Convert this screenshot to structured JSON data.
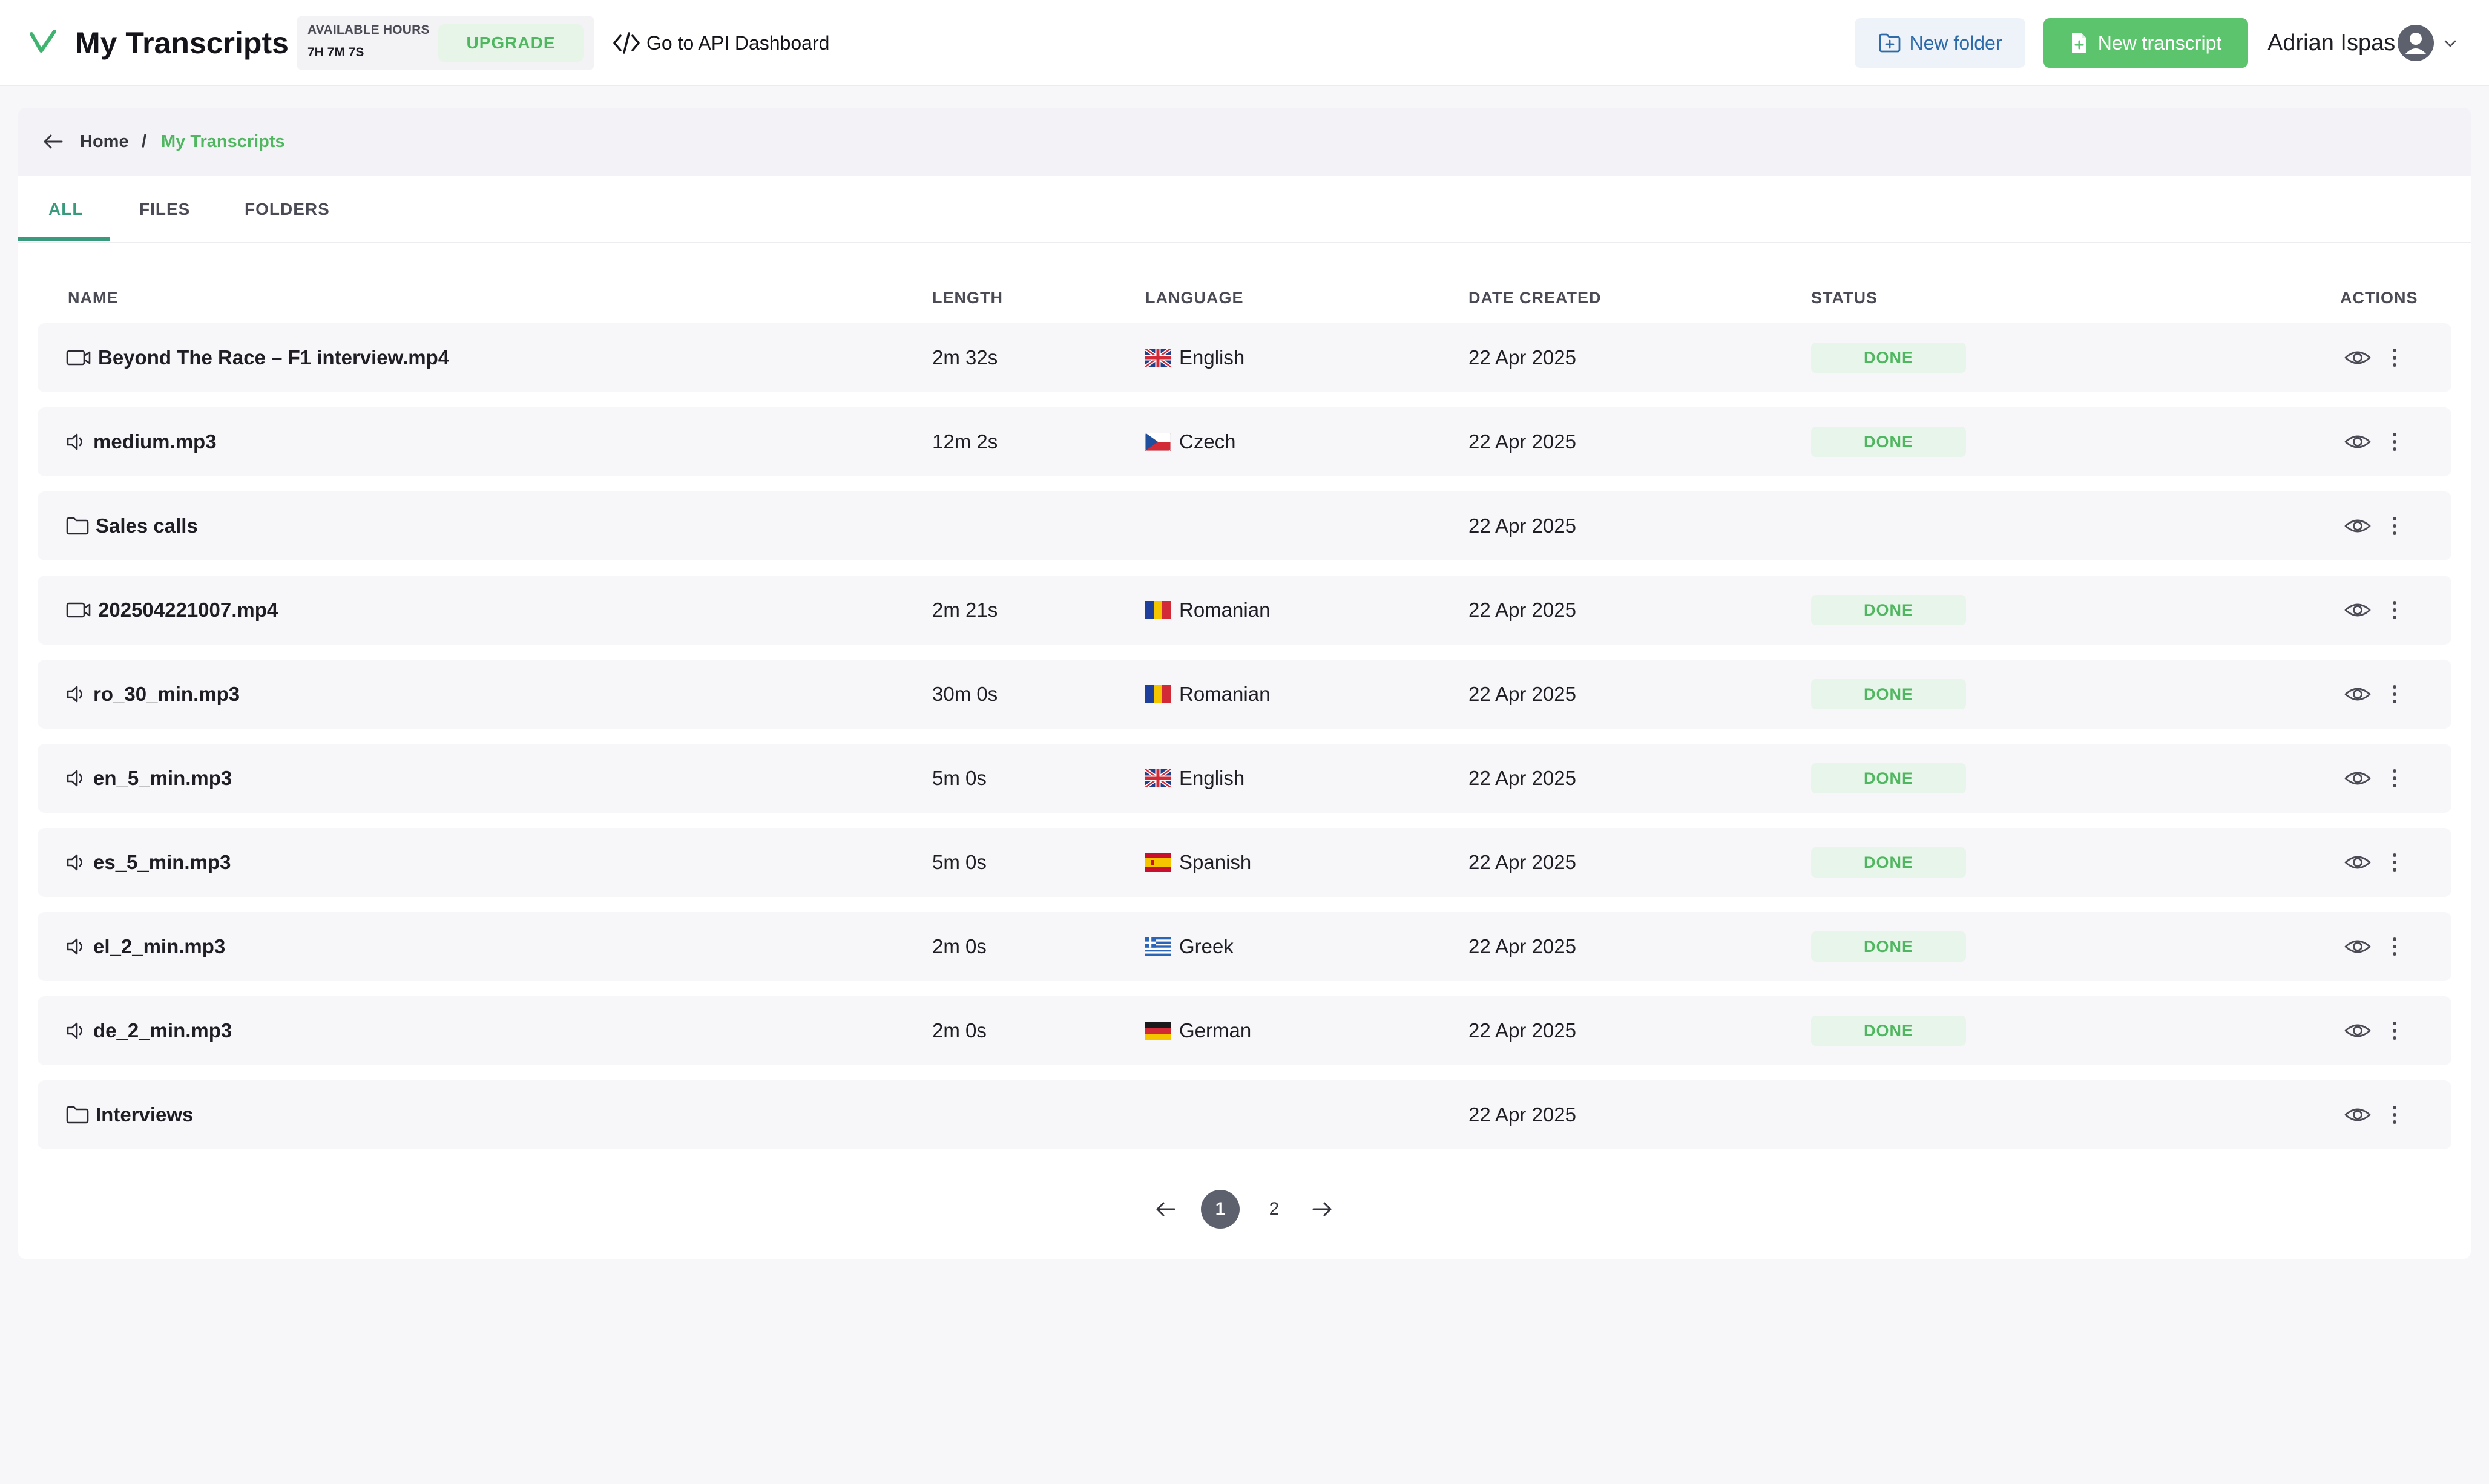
{
  "header": {
    "app_title": "My Transcripts",
    "available_hours_label": "AVAILABLE HOURS",
    "available_hours_value": "7H 7M 7S",
    "upgrade_label": "UPGRADE",
    "api_link_label": "Go to API Dashboard",
    "new_folder_label": "New folder",
    "new_transcript_label": "New transcript",
    "user_name": "Adrian Ispas"
  },
  "breadcrumb": {
    "home": "Home",
    "separator": "/",
    "current": "My Transcripts"
  },
  "tabs": [
    {
      "label": "ALL",
      "active": true
    },
    {
      "label": "FILES",
      "active": false
    },
    {
      "label": "FOLDERS",
      "active": false
    }
  ],
  "table": {
    "columns": {
      "name": "NAME",
      "length": "LENGTH",
      "language": "LANGUAGE",
      "date": "DATE CREATED",
      "status": "STATUS",
      "actions": "ACTIONS"
    },
    "rows": [
      {
        "type": "video",
        "name": "Beyond The Race – F1 interview.mp4",
        "length": "2m 32s",
        "language": "English",
        "flag": "uk",
        "date": "22 Apr 2025",
        "status": "DONE"
      },
      {
        "type": "audio",
        "name": "medium.mp3",
        "length": "12m 2s",
        "language": "Czech",
        "flag": "cz",
        "date": "22 Apr 2025",
        "status": "DONE"
      },
      {
        "type": "folder",
        "name": "Sales calls",
        "length": "",
        "language": "",
        "flag": "",
        "date": "22 Apr 2025",
        "status": ""
      },
      {
        "type": "video",
        "name": "202504221007.mp4",
        "length": "2m 21s",
        "language": "Romanian",
        "flag": "ro",
        "date": "22 Apr 2025",
        "status": "DONE"
      },
      {
        "type": "audio",
        "name": "ro_30_min.mp3",
        "length": "30m 0s",
        "language": "Romanian",
        "flag": "ro",
        "date": "22 Apr 2025",
        "status": "DONE"
      },
      {
        "type": "audio",
        "name": "en_5_min.mp3",
        "length": "5m 0s",
        "language": "English",
        "flag": "uk",
        "date": "22 Apr 2025",
        "status": "DONE"
      },
      {
        "type": "audio",
        "name": "es_5_min.mp3",
        "length": "5m 0s",
        "language": "Spanish",
        "flag": "es",
        "date": "22 Apr 2025",
        "status": "DONE"
      },
      {
        "type": "audio",
        "name": "el_2_min.mp3",
        "length": "2m 0s",
        "language": "Greek",
        "flag": "gr",
        "date": "22 Apr 2025",
        "status": "DONE"
      },
      {
        "type": "audio",
        "name": "de_2_min.mp3",
        "length": "2m 0s",
        "language": "German",
        "flag": "de",
        "date": "22 Apr 2025",
        "status": "DONE"
      },
      {
        "type": "folder",
        "name": "Interviews",
        "length": "",
        "language": "",
        "flag": "",
        "date": "22 Apr 2025",
        "status": ""
      }
    ]
  },
  "pagination": {
    "current": "1",
    "next_page": "2"
  },
  "colors": {
    "brand_green": "#5cc46c",
    "accent_teal": "#3a9a7e",
    "status_done": "#4fb75f",
    "link_blue": "#2e6ba8"
  },
  "icons": [
    "logo-icon",
    "code-icon",
    "folder-plus-icon",
    "file-plus-icon",
    "user-avatar-icon",
    "chevron-down-icon",
    "arrow-left-icon",
    "video-file-icon",
    "audio-file-icon",
    "folder-icon",
    "eye-icon",
    "more-vertical-icon",
    "arrow-right-icon"
  ]
}
